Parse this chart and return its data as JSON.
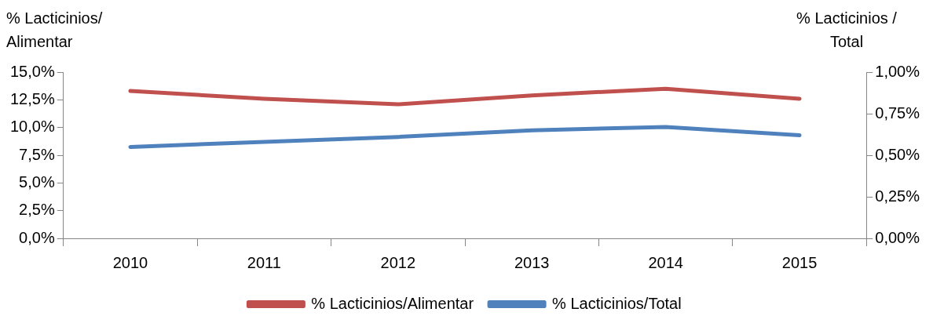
{
  "chart_data": {
    "type": "line",
    "ylabel": "% Lacticinios/ Alimentar",
    "y2label": "% Lacticinios / Total",
    "categories": [
      "2010",
      "2011",
      "2012",
      "2013",
      "2014",
      "2015"
    ],
    "series": [
      {
        "name": "% Lacticinios/Alimentar",
        "color": "#c0504d",
        "values": [
          13.3,
          12.6,
          12.1,
          12.9,
          13.5,
          12.6
        ]
      },
      {
        "name": "% Lacticinios/Total",
        "color": "#4f81bd",
        "axis": "y2",
        "values": [
          0.55,
          0.58,
          0.61,
          0.65,
          0.67,
          0.62
        ]
      }
    ],
    "ylim": [
      0,
      15
    ],
    "yticks": [
      {
        "value": 0,
        "label": "0,0%"
      },
      {
        "value": 2.5,
        "label": "2,5%"
      },
      {
        "value": 5,
        "label": "5,0%"
      },
      {
        "value": 7.5,
        "label": "7,5%"
      },
      {
        "value": 10,
        "label": "10,0%"
      },
      {
        "value": 12.5,
        "label": "12,5%"
      },
      {
        "value": 15,
        "label": "15,0%"
      }
    ],
    "y2lim": [
      0,
      1
    ],
    "y2ticks": [
      {
        "value": 0,
        "label": "0,00%"
      },
      {
        "value": 0.25,
        "label": "0,25%"
      },
      {
        "value": 0.5,
        "label": "0,50%"
      },
      {
        "value": 0.75,
        "label": "0,75%"
      },
      {
        "value": 1,
        "label": "1,00%"
      }
    ],
    "grid": false,
    "legend": "bottom",
    "marker": "none",
    "line_style": "solid"
  }
}
